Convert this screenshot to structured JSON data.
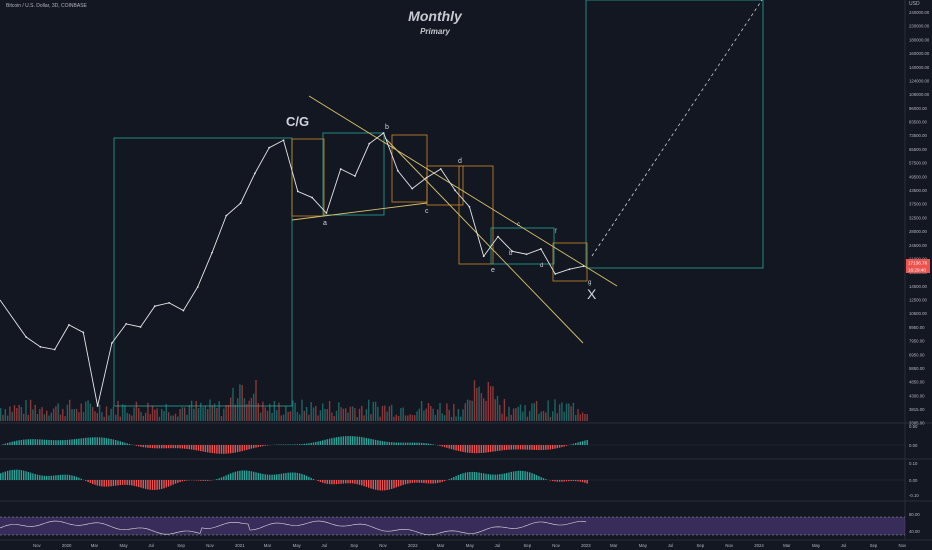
{
  "header": {
    "symbol": "Bitcoin / U.S. Dollar, 3D, COINBASE",
    "title": "Monthly",
    "subtitle": "Primary"
  },
  "colors": {
    "background": "#131722",
    "price_line": "#e6e6e6",
    "teal_box": "#26a69a",
    "orange_box": "#d08a2a",
    "channel_line": "#d9c36a",
    "up_bar": "#26a69a",
    "down_bar": "#ef5350",
    "rsi_band": "#7e57c2",
    "grid": "#1e2230"
  },
  "chart_data": {
    "type": "line",
    "scale": "log",
    "currency_label": "USD",
    "price_axis_labels": [
      "240000.00",
      "230000.00",
      "180000.00",
      "160000.00",
      "140000.00",
      "124000.00",
      "108000.00",
      "96000.00",
      "83500.00",
      "73500.00",
      "65500.00",
      "57500.00",
      "49500.00",
      "43500.00",
      "37500.00",
      "32500.00",
      "28000.00",
      "24500.00",
      "21000.00",
      "18000.00",
      "14500.00",
      "12500.00",
      "10500.00",
      "8950.00",
      "7950.00",
      "6950.00",
      "5850.00",
      "4850.00",
      "4300.00",
      "3815.00",
      "3395.00"
    ],
    "last_price_label": "17136.76",
    "countdown_label": "16:29:40",
    "x_axis_labels": [
      "Nov",
      "2020",
      "Mar",
      "May",
      "Jul",
      "Sep",
      "Nov",
      "2021",
      "Mar",
      "May",
      "Jul",
      "Sep",
      "Nov",
      "2022",
      "Mar",
      "May",
      "Jul",
      "Sep",
      "Nov",
      "2023",
      "Mar",
      "May",
      "Jul",
      "Sep",
      "Nov",
      "2024",
      "Mar",
      "May",
      "Jul",
      "Sep",
      "Nov"
    ],
    "wave_labels": [
      "C/G",
      "a",
      "b",
      "c",
      "d",
      "e",
      "b",
      "c",
      "d",
      "f",
      "g",
      "X"
    ],
    "macd1_axis_labels": [
      "0.50",
      "0.00"
    ],
    "macd2_axis_labels": [
      "0.10",
      "0.00",
      "-0.10"
    ],
    "rsi_axis_labels": [
      "80.00",
      "40.00"
    ],
    "price_series": [
      {
        "t": "2019-10",
        "v": 8200
      },
      {
        "t": "2019-11",
        "v": 7400
      },
      {
        "t": "2019-12",
        "v": 7200
      },
      {
        "t": "2020-01",
        "v": 9300
      },
      {
        "t": "2020-02",
        "v": 8600
      },
      {
        "t": "2020-03",
        "v": 4000
      },
      {
        "t": "2020-04",
        "v": 7700
      },
      {
        "t": "2020-05",
        "v": 9400
      },
      {
        "t": "2020-06",
        "v": 9100
      },
      {
        "t": "2020-07",
        "v": 11300
      },
      {
        "t": "2020-08",
        "v": 11700
      },
      {
        "t": "2020-09",
        "v": 10800
      },
      {
        "t": "2020-10",
        "v": 13800
      },
      {
        "t": "2020-11",
        "v": 19700
      },
      {
        "t": "2020-12",
        "v": 29000
      },
      {
        "t": "2021-01",
        "v": 33000
      },
      {
        "t": "2021-02",
        "v": 45000
      },
      {
        "t": "2021-03",
        "v": 58800
      },
      {
        "t": "2021-04",
        "v": 63500
      },
      {
        "t": "2021-05",
        "v": 37300
      },
      {
        "t": "2021-06",
        "v": 35000
      },
      {
        "t": "2021-07",
        "v": 29800
      },
      {
        "t": "2021-08",
        "v": 47100
      },
      {
        "t": "2021-09",
        "v": 43800
      },
      {
        "t": "2021-10",
        "v": 61300
      },
      {
        "t": "2021-11",
        "v": 68500
      },
      {
        "t": "2021-12",
        "v": 46200
      },
      {
        "t": "2022-01",
        "v": 38400
      },
      {
        "t": "2022-02",
        "v": 43000
      },
      {
        "t": "2022-03",
        "v": 47100
      },
      {
        "t": "2022-04",
        "v": 37700
      },
      {
        "t": "2022-05",
        "v": 31800
      },
      {
        "t": "2022-06",
        "v": 19000
      },
      {
        "t": "2022-07",
        "v": 23300
      },
      {
        "t": "2022-08",
        "v": 20000
      },
      {
        "t": "2022-09",
        "v": 19400
      },
      {
        "t": "2022-10",
        "v": 20500
      },
      {
        "t": "2022-11",
        "v": 15800
      },
      {
        "t": "2022-12",
        "v": 16600
      },
      {
        "t": "2023-01",
        "v": 17136.76
      }
    ]
  }
}
